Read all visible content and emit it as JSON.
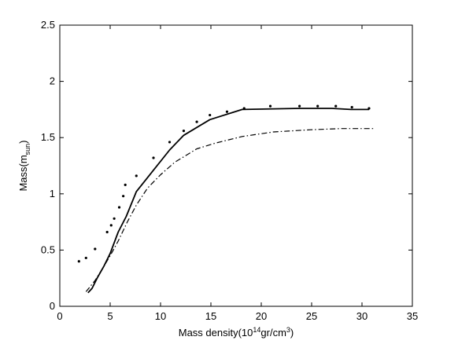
{
  "chart_data": {
    "type": "line",
    "title": "",
    "xlabel": {
      "base": "Mass density(10",
      "sup1": "14",
      "mid": "gr/cm",
      "sup2": "3",
      "end": ")"
    },
    "ylabel": {
      "base": "Mass(m",
      "sub": "sun",
      "end": ")"
    },
    "xlim": [
      0,
      35
    ],
    "ylim": [
      0,
      2.5
    ],
    "x_ticks": [
      0,
      5,
      10,
      15,
      20,
      25,
      30,
      35
    ],
    "y_ticks": [
      0,
      0.5,
      1,
      1.5,
      2,
      2.5
    ],
    "x_tick_labels": [
      "0",
      "5",
      "10",
      "15",
      "20",
      "25",
      "30",
      "35"
    ],
    "y_tick_labels": [
      "0",
      "0.5",
      "1",
      "1.5",
      "2",
      "2.5"
    ],
    "grid": false,
    "series": [
      {
        "style": "solid",
        "color": "#000000",
        "points": [
          [
            2.8,
            0.12
          ],
          [
            3.2,
            0.16
          ],
          [
            3.7,
            0.25
          ],
          [
            4.4,
            0.36
          ],
          [
            5.0,
            0.47
          ],
          [
            5.8,
            0.66
          ],
          [
            6.6,
            0.8
          ],
          [
            7.6,
            1.02
          ],
          [
            9.3,
            1.21
          ],
          [
            10.9,
            1.39
          ],
          [
            12.3,
            1.52
          ],
          [
            14.9,
            1.66
          ],
          [
            18.1,
            1.75
          ],
          [
            23.8,
            1.76
          ],
          [
            27.0,
            1.76
          ],
          [
            28.9,
            1.75
          ],
          [
            30.7,
            1.75
          ]
        ]
      },
      {
        "style": "dashdot",
        "color": "#000000",
        "points": [
          [
            2.6,
            0.13
          ],
          [
            3.5,
            0.23
          ],
          [
            4.2,
            0.33
          ],
          [
            5.0,
            0.45
          ],
          [
            5.8,
            0.58
          ],
          [
            6.7,
            0.75
          ],
          [
            7.6,
            0.9
          ],
          [
            8.7,
            1.05
          ],
          [
            10.0,
            1.17
          ],
          [
            11.4,
            1.28
          ],
          [
            13.6,
            1.4
          ],
          [
            15.4,
            1.45
          ],
          [
            18.1,
            1.51
          ],
          [
            21.2,
            1.55
          ],
          [
            24.9,
            1.57
          ],
          [
            27.9,
            1.58
          ],
          [
            31.2,
            1.58
          ]
        ]
      },
      {
        "style": "dots",
        "color": "#000000",
        "points": [
          [
            1.9,
            0.4
          ],
          [
            2.6,
            0.43
          ],
          [
            3.5,
            0.51
          ],
          [
            4.7,
            0.66
          ],
          [
            5.1,
            0.72
          ],
          [
            5.4,
            0.78
          ],
          [
            5.9,
            0.88
          ],
          [
            6.3,
            0.98
          ],
          [
            6.5,
            1.08
          ],
          [
            7.6,
            1.16
          ],
          [
            9.3,
            1.32
          ],
          [
            10.9,
            1.46
          ],
          [
            12.3,
            1.56
          ],
          [
            13.6,
            1.64
          ],
          [
            14.9,
            1.7
          ],
          [
            16.6,
            1.73
          ],
          [
            18.3,
            1.76
          ],
          [
            20.9,
            1.78
          ],
          [
            23.8,
            1.78
          ],
          [
            25.6,
            1.78
          ],
          [
            27.4,
            1.78
          ],
          [
            29.0,
            1.77
          ],
          [
            30.7,
            1.76
          ]
        ]
      }
    ]
  }
}
